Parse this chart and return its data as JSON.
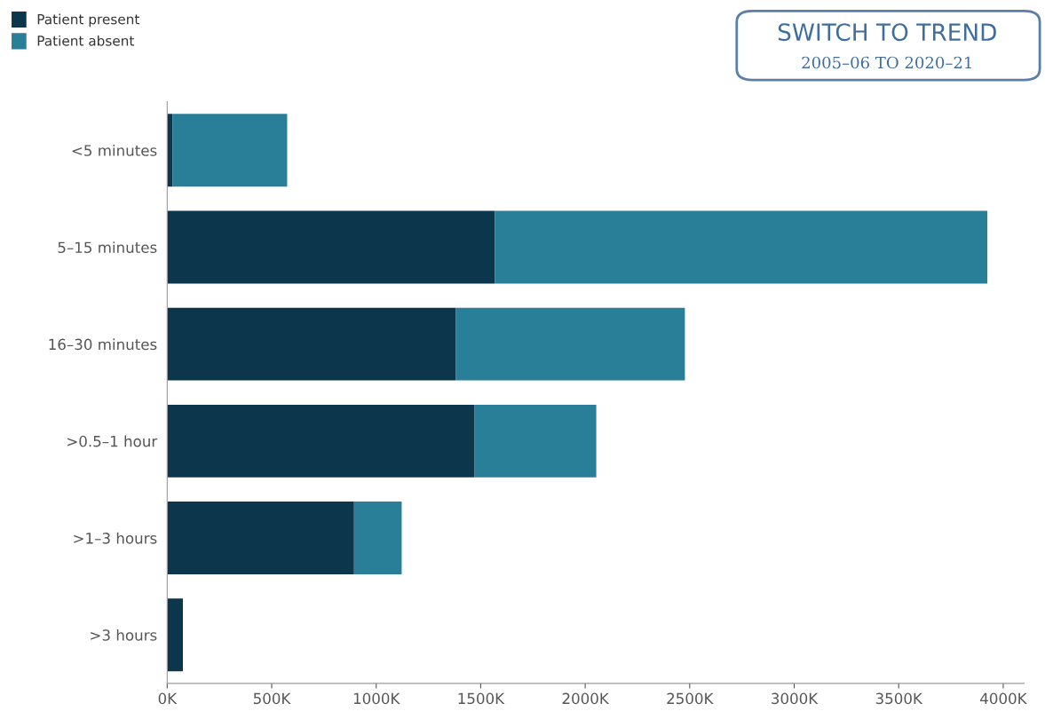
{
  "chart_data": {
    "type": "bar",
    "orientation": "horizontal",
    "stacked": true,
    "categories": [
      "<5 minutes",
      "5–15 minutes",
      "16–30 minutes",
      ">0.5–1 hour",
      ">1–3 hours",
      ">3 hours"
    ],
    "series": [
      {
        "name": "Patient present",
        "color": "#0b364c",
        "values": [
          25,
          1567,
          1380,
          1471,
          894,
          75
        ]
      },
      {
        "name": "Patient absent",
        "color": "#2a7f98",
        "values": [
          549,
          2357,
          1097,
          582,
          228,
          null
        ]
      }
    ],
    "xlim": [
      0,
      4100
    ],
    "xticks": [
      {
        "value": 0,
        "label": "0K"
      },
      {
        "value": 500,
        "label": "500K"
      },
      {
        "value": 1000,
        "label": "1000K"
      },
      {
        "value": 1500,
        "label": "1500K"
      },
      {
        "value": 2000,
        "label": "2000K"
      },
      {
        "value": 2500,
        "label": "2500K"
      },
      {
        "value": 3000,
        "label": "3000K"
      },
      {
        "value": 3500,
        "label": "3500K"
      },
      {
        "value": 4000,
        "label": "4000K"
      }
    ],
    "legend": "top left",
    "grid": false,
    "annotations": [
      "SWITCH TO TREND",
      "2005–06 TO 2020–21"
    ]
  }
}
